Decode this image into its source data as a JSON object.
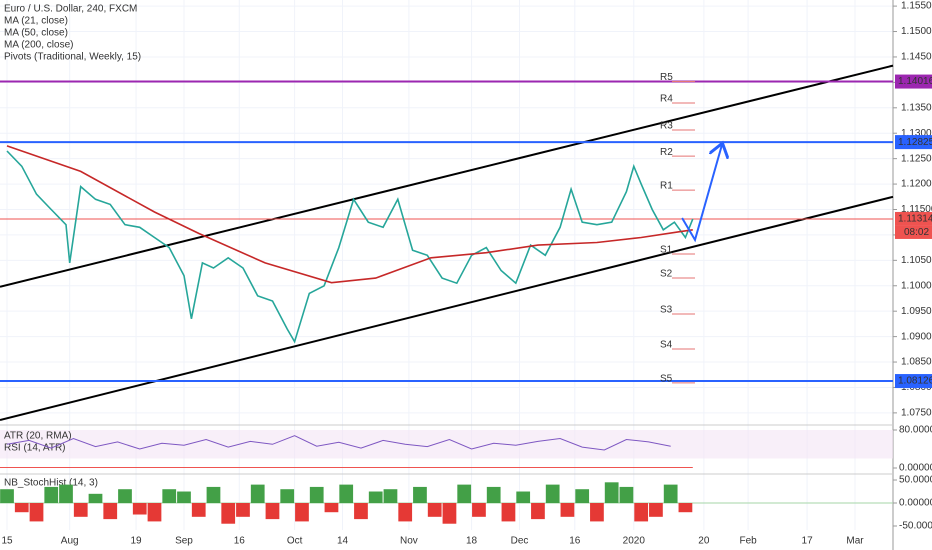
{
  "chart_data": {
    "type": "line",
    "title": "Euro / U.S. Dollar, 240, FXCM",
    "indicators": [
      "MA (21, close)",
      "MA (50, close)",
      "MA (200, close)",
      "Pivots (Traditional, Weekly, 15)"
    ],
    "xlim": [
      -1.9,
      240.3
    ],
    "xticks": [
      {
        "value": 0,
        "label": "15"
      },
      {
        "value": 17,
        "label": "Aug"
      },
      {
        "value": 35,
        "label": "19"
      },
      {
        "value": 48,
        "label": "Sep"
      },
      {
        "value": 63,
        "label": "16"
      },
      {
        "value": 78,
        "label": "Oct"
      },
      {
        "value": 91,
        "label": "14"
      },
      {
        "value": 109,
        "label": "Nov"
      },
      {
        "value": 126,
        "label": "18"
      },
      {
        "value": 139,
        "label": "Dec"
      },
      {
        "value": 154,
        "label": "16"
      },
      {
        "value": 170,
        "label": "2020"
      },
      {
        "value": 189,
        "label": "20"
      },
      {
        "value": 201,
        "label": "Feb"
      },
      {
        "value": 217,
        "label": "17"
      },
      {
        "value": 230,
        "label": "Mar"
      }
    ],
    "ylim": [
      1.0736,
      1.1562
    ],
    "yticks": [
      {
        "value": 1.155,
        "label": "1.15500"
      },
      {
        "value": 1.15,
        "label": "1.15000"
      },
      {
        "value": 1.145,
        "label": "1.14500"
      },
      {
        "value": 1.14,
        "label": "1.14000"
      },
      {
        "value": 1.135,
        "label": "1.13500"
      },
      {
        "value": 1.13,
        "label": "1.13000"
      },
      {
        "value": 1.125,
        "label": "1.12500"
      },
      {
        "value": 1.12,
        "label": "1.12000"
      },
      {
        "value": 1.115,
        "label": "1.11500"
      },
      {
        "value": 1.11,
        "label": "1.11000"
      },
      {
        "value": 1.105,
        "label": "1.10500"
      },
      {
        "value": 1.1,
        "label": "1.10000"
      },
      {
        "value": 1.095,
        "label": "1.09500"
      },
      {
        "value": 1.09,
        "label": "1.09000"
      },
      {
        "value": 1.085,
        "label": "1.08500"
      },
      {
        "value": 1.08,
        "label": "1.08000"
      },
      {
        "value": 1.075,
        "label": "1.07500"
      }
    ],
    "grid": true,
    "series": [
      {
        "color": "#26a69a",
        "x": [
          0,
          4,
          8,
          12,
          16,
          17,
          20,
          24,
          28,
          32,
          36,
          40,
          44,
          48,
          50,
          53,
          56,
          60,
          64,
          68,
          72,
          76,
          78,
          82,
          86,
          90,
          94,
          98,
          102,
          106,
          110,
          114,
          118,
          122,
          126,
          130,
          134,
          138,
          142,
          146,
          150,
          153,
          156,
          160,
          164,
          168,
          170,
          172,
          175,
          178,
          181,
          184,
          186
        ],
        "values": [
          1.1265,
          1.1235,
          1.118,
          1.115,
          1.112,
          1.1045,
          1.1195,
          1.117,
          1.116,
          1.112,
          1.1115,
          1.1095,
          1.1075,
          1.102,
          1.0935,
          1.1045,
          1.1035,
          1.1055,
          1.1035,
          1.098,
          1.097,
          1.0915,
          1.089,
          1.0985,
          1.1,
          1.1075,
          1.117,
          1.1125,
          1.1115,
          1.117,
          1.107,
          1.106,
          1.1015,
          1.1005,
          1.106,
          1.1075,
          1.103,
          1.1005,
          1.108,
          1.106,
          1.1115,
          1.119,
          1.1125,
          1.112,
          1.1125,
          1.1185,
          1.1235,
          1.12,
          1.115,
          1.111,
          1.1125,
          1.1095,
          1.11314
        ]
      },
      {
        "name": "MA (200, close)",
        "color": "#c62828",
        "x": [
          0,
          20,
          40,
          52,
          70,
          88,
          100,
          115,
          130,
          144,
          160,
          172,
          182,
          186
        ],
        "values": [
          1.1275,
          1.1225,
          1.1145,
          1.1103,
          1.1045,
          1.1006,
          1.1015,
          1.1055,
          1.1065,
          1.108,
          1.1085,
          1.1095,
          1.1106,
          1.111
        ]
      }
    ],
    "levels": [
      {
        "value": 1.14016,
        "color": "#9c27b0"
      },
      {
        "value": 1.12825,
        "color": "#2962ff"
      },
      {
        "value": 1.11314,
        "color": "#ef5350",
        "countdown": "08:02"
      },
      {
        "value": 1.08126,
        "color": "#2962ff"
      }
    ],
    "pivots": {
      "labels": [
        "R5",
        "R4",
        "R3",
        "R2",
        "R1",
        "S1",
        "S2",
        "S3",
        "S4",
        "S5"
      ],
      "values": [
        1.14016,
        1.13594,
        1.13063,
        1.12549,
        1.11882,
        1.10624,
        1.10152,
        1.09445,
        1.08757,
        1.0809
      ]
    },
    "channels": [
      {
        "x": [
          -1.9,
          240.3
        ],
        "values": [
          1.0998,
          1.1433
        ]
      },
      {
        "x": [
          -1.9,
          240.3
        ],
        "values": [
          1.0736,
          1.1175
        ]
      }
    ],
    "arrow": {
      "color": "#2962ff",
      "x": [
        183.1,
        186.6,
        193.9
      ],
      "values": [
        1.11333,
        1.10901,
        1.12768
      ]
    },
    "panes": [
      {
        "labels": [
          "ATR (20, RMA)",
          "RSI (14, ATR)"
        ],
        "ylim": [
          -8.4,
          84.2
        ],
        "yticks": [
          {
            "value": 80,
            "label": "80.00000"
          },
          {
            "value": 0,
            "label": "0.00000"
          }
        ],
        "series": [
          {
            "color": "#7e57c2",
            "x": [
              0,
              6,
              12,
              18,
              24,
              30,
              36,
              42,
              48,
              54,
              60,
              66,
              72,
              78,
              84,
              90,
              96,
              102,
              108,
              114,
              120,
              126,
              132,
              138,
              144,
              150,
              156,
              162,
              168,
              174,
              180
            ],
            "values": [
              50,
              58,
              42,
              62,
              45,
              55,
              40,
              52,
              48,
              60,
              44,
              56,
              50,
              68,
              46,
              54,
              42,
              58,
              50,
              45,
              60,
              40,
              52,
              48,
              56,
              62,
              44,
              38,
              60,
              55,
              46
            ]
          },
          {
            "color": "#ef5350",
            "x": [
              -1.9,
              186
            ],
            "values": [
              1,
              1
            ]
          }
        ]
      },
      {
        "labels": [
          "NB_StochHist (14, 3)"
        ],
        "type": "histogram",
        "ylim": [
          -97.8,
          60.9
        ],
        "yticks": [
          {
            "value": 50,
            "label": "50.00000"
          },
          {
            "value": 0,
            "label": "0.00000"
          },
          {
            "value": -50,
            "label": "-50.00000"
          }
        ],
        "colors": [
          "#43a047",
          "#e53935"
        ],
        "x": [
          0,
          4,
          8,
          12,
          16,
          20,
          24,
          28,
          32,
          36,
          40,
          44,
          48,
          52,
          56,
          60,
          64,
          68,
          72,
          76,
          80,
          84,
          88,
          92,
          96,
          100,
          104,
          108,
          112,
          116,
          120,
          124,
          128,
          132,
          136,
          140,
          144,
          148,
          152,
          156,
          160,
          164,
          168,
          172,
          176,
          180,
          184
        ],
        "values": [
          30,
          -20,
          -40,
          35,
          40,
          -30,
          20,
          -35,
          30,
          -25,
          -40,
          30,
          25,
          -30,
          35,
          -45,
          -30,
          40,
          -35,
          30,
          -40,
          35,
          -20,
          40,
          -35,
          25,
          30,
          -40,
          35,
          -30,
          -45,
          40,
          -30,
          35,
          -40,
          25,
          -35,
          40,
          -30,
          30,
          -40,
          45,
          35,
          -40,
          -30,
          40,
          -20
        ]
      }
    ]
  }
}
